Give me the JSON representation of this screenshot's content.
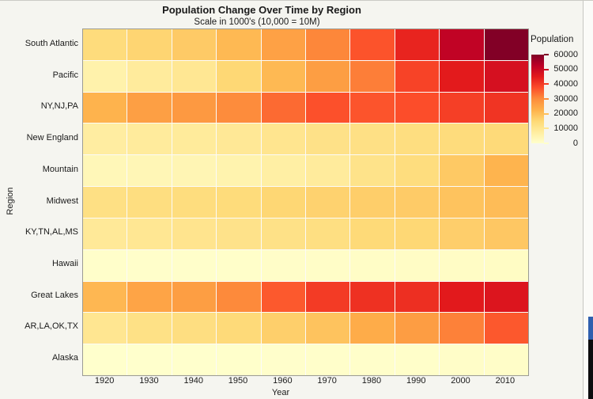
{
  "chart_data": {
    "type": "heatmap",
    "title": "Population Change Over Time by Region",
    "subtitle": "Scale in 1000's  (10,000 = 10M)",
    "xlabel": "Year",
    "ylabel": "Region",
    "x": [
      1920,
      1930,
      1940,
      1950,
      1960,
      1970,
      1980,
      1990,
      2000,
      2010
    ],
    "series": [
      {
        "name": "South Atlantic",
        "values": [
          13990,
          15794,
          17823,
          21182,
          25972,
          30671,
          36959,
          43567,
          51769,
          59777
        ]
      },
      {
        "name": "Pacific",
        "values": [
          5567,
          8195,
          9733,
          15115,
          21198,
          26523,
          31800,
          39127,
          45026,
          47798
        ]
      },
      {
        "name": "NY,NJ,PA",
        "values": [
          22261,
          26261,
          27539,
          30164,
          34168,
          37213,
          36787,
          37602,
          39672,
          41217
        ]
      },
      {
        "name": "New England",
        "values": [
          7401,
          8166,
          8437,
          9314,
          10509,
          11847,
          12348,
          13207,
          13923,
          14445
        ]
      },
      {
        "name": "Mountain",
        "values": [
          3336,
          3702,
          4150,
          5075,
          6855,
          8282,
          11373,
          13659,
          18172,
          22065
        ]
      },
      {
        "name": "Midwest",
        "values": [
          12544,
          13297,
          13517,
          14061,
          15394,
          16319,
          17183,
          17660,
          19237,
          20505
        ]
      },
      {
        "name": "KY,TN,AL,MS",
        "values": [
          8893,
          9887,
          10778,
          11477,
          12050,
          12803,
          14666,
          15176,
          17023,
          18433
        ]
      },
      {
        "name": "Hawaii",
        "values": [
          256,
          368,
          423,
          500,
          633,
          770,
          965,
          1108,
          1212,
          1360
        ]
      },
      {
        "name": "Great Lakes",
        "values": [
          21476,
          25297,
          26626,
          30399,
          36225,
          40252,
          41682,
          42009,
          45155,
          46422
        ]
      },
      {
        "name": "AR,LA,OK,TX",
        "values": [
          10242,
          12177,
          13065,
          14538,
          16951,
          19321,
          23747,
          26703,
          31445,
          36346
        ]
      },
      {
        "name": "Alaska",
        "values": [
          55,
          59,
          73,
          129,
          226,
          300,
          402,
          550,
          627,
          710
        ]
      }
    ],
    "legend": {
      "title": "Population",
      "ticks": [
        60000,
        50000,
        40000,
        30000,
        20000,
        10000,
        0
      ],
      "domain": [
        0,
        60000
      ],
      "colormap": [
        "#ffffcc",
        "#ffeda0",
        "#fed976",
        "#feb24c",
        "#fd8d3c",
        "#fc4e2a",
        "#e31a1c",
        "#bd0026",
        "#800026"
      ]
    },
    "layout": {
      "grid": false,
      "legend_position": "right"
    }
  }
}
